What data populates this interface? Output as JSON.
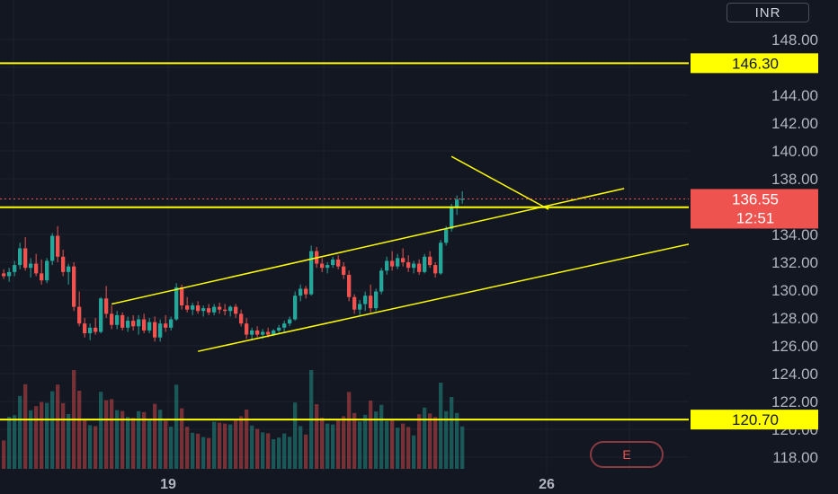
{
  "currency": "INR",
  "events_label": "E",
  "countdown": "12:51",
  "colors": {
    "background": "#131722",
    "grid": "#1e222d",
    "up": "#26a69a",
    "down": "#ef5350",
    "drawing": "#ffff00",
    "axis_text": "#b2b5be",
    "last_price_bg": "#ef5350"
  },
  "chart_data": {
    "type": "candlestick",
    "y_axis": {
      "ylim": [
        117,
        151
      ],
      "tick_labels": [
        "118.00",
        "120.00",
        "122.00",
        "124.00",
        "126.00",
        "128.00",
        "130.00",
        "132.00",
        "134.00",
        "136.00",
        "138.00",
        "140.00",
        "142.00",
        "144.00",
        "146.00",
        "148.00"
      ]
    },
    "x_axis": {
      "tick_labels": [
        "19",
        "26"
      ]
    },
    "last_price": 136.55,
    "horizontal_levels": [
      {
        "price": 146.3,
        "label": "146.30"
      },
      {
        "price": 135.95,
        "label": ""
      },
      {
        "price": 120.7,
        "label": "120.70"
      }
    ],
    "last_price_label": "136.55",
    "trendlines": [
      {
        "name": "channel-upper",
        "from": {
          "bar": 20,
          "price": 129.0
        },
        "to": {
          "bar": 115,
          "price": 137.3
        }
      },
      {
        "name": "channel-lower",
        "from": {
          "bar": 36,
          "price": 125.6
        },
        "to": {
          "bar": 140,
          "price": 133.3
        }
      },
      {
        "name": "breakout-line",
        "from": {
          "bar": 83,
          "price": 139.6
        },
        "to": {
          "bar": 101,
          "price": 135.8
        }
      }
    ],
    "candles_source": "approximate intraday bars estimated from image",
    "series": [
      {
        "name": "price",
        "values": [
          [
            131.2,
            131.5,
            130.8,
            131.0
          ],
          [
            131.0,
            131.6,
            130.6,
            131.3
          ],
          [
            131.3,
            132.1,
            131.0,
            131.8
          ],
          [
            131.8,
            133.4,
            131.5,
            133.0
          ],
          [
            133.0,
            133.8,
            131.4,
            131.6
          ],
          [
            131.6,
            132.3,
            130.9,
            131.9
          ],
          [
            131.9,
            132.6,
            131.0,
            131.2
          ],
          [
            131.2,
            132.2,
            130.4,
            130.7
          ],
          [
            130.7,
            132.3,
            130.5,
            132.1
          ],
          [
            132.1,
            134.1,
            131.8,
            133.9
          ],
          [
            133.9,
            134.6,
            132.0,
            132.4
          ],
          [
            132.4,
            132.9,
            131.0,
            131.3
          ],
          [
            131.3,
            131.9,
            130.4,
            131.7
          ],
          [
            131.7,
            132.0,
            128.5,
            128.8
          ],
          [
            128.8,
            129.9,
            127.4,
            127.6
          ],
          [
            127.6,
            128.0,
            126.6,
            126.9
          ],
          [
            126.9,
            127.6,
            126.4,
            127.3
          ],
          [
            127.3,
            128.0,
            126.8,
            127.0
          ],
          [
            127.0,
            129.5,
            126.9,
            129.4
          ],
          [
            129.4,
            130.3,
            128.0,
            128.3
          ],
          [
            128.3,
            128.9,
            127.2,
            127.5
          ],
          [
            127.5,
            128.5,
            127.2,
            128.2
          ],
          [
            128.2,
            128.4,
            127.1,
            127.3
          ],
          [
            127.3,
            128.1,
            127.0,
            127.8
          ],
          [
            127.8,
            128.2,
            127.1,
            127.4
          ],
          [
            127.4,
            128.2,
            126.8,
            127.9
          ],
          [
            127.9,
            128.3,
            126.9,
            127.1
          ],
          [
            127.1,
            128.0,
            126.9,
            127.7
          ],
          [
            127.7,
            128.1,
            126.3,
            126.6
          ],
          [
            126.6,
            127.9,
            126.3,
            127.6
          ],
          [
            127.6,
            128.2,
            127.0,
            127.3
          ],
          [
            127.3,
            128.1,
            127.1,
            127.9
          ],
          [
            127.9,
            130.5,
            127.8,
            130.2
          ],
          [
            130.2,
            130.4,
            128.6,
            128.9
          ],
          [
            128.9,
            129.5,
            128.4,
            128.6
          ],
          [
            128.6,
            129.1,
            128.2,
            128.9
          ],
          [
            128.9,
            129.2,
            128.3,
            128.5
          ],
          [
            128.5,
            128.9,
            128.1,
            128.7
          ],
          [
            128.7,
            129.0,
            128.2,
            128.4
          ],
          [
            128.4,
            129.0,
            128.2,
            128.8
          ],
          [
            128.8,
            129.1,
            128.3,
            128.6
          ],
          [
            128.6,
            129.0,
            128.2,
            128.5
          ],
          [
            128.5,
            128.9,
            128.1,
            128.8
          ],
          [
            128.8,
            129.0,
            128.0,
            128.3
          ],
          [
            128.3,
            128.6,
            127.4,
            127.6
          ],
          [
            127.6,
            128.0,
            126.5,
            126.8
          ],
          [
            126.8,
            127.3,
            126.4,
            127.1
          ],
          [
            127.1,
            127.4,
            126.6,
            126.8
          ],
          [
            126.8,
            127.2,
            126.5,
            127.0
          ],
          [
            127.0,
            127.3,
            126.6,
            126.8
          ],
          [
            126.8,
            127.2,
            126.7,
            127.1
          ],
          [
            127.1,
            127.5,
            126.9,
            127.3
          ],
          [
            127.3,
            127.8,
            127.0,
            127.6
          ],
          [
            127.6,
            128.1,
            127.4,
            127.9
          ],
          [
            127.9,
            129.9,
            127.8,
            129.6
          ],
          [
            129.6,
            130.4,
            129.2,
            130.1
          ],
          [
            130.1,
            130.3,
            129.4,
            129.7
          ],
          [
            129.7,
            133.2,
            129.6,
            132.8
          ],
          [
            132.8,
            133.1,
            131.6,
            131.9
          ],
          [
            131.9,
            132.3,
            131.3,
            131.6
          ],
          [
            131.6,
            132.0,
            131.2,
            131.8
          ],
          [
            131.8,
            132.4,
            131.6,
            132.2
          ],
          [
            132.2,
            132.5,
            131.5,
            131.7
          ],
          [
            131.7,
            132.0,
            130.8,
            131.1
          ],
          [
            131.1,
            131.4,
            129.2,
            129.5
          ],
          [
            129.5,
            129.7,
            128.3,
            128.6
          ],
          [
            128.6,
            129.3,
            128.2,
            129.0
          ],
          [
            129.0,
            129.9,
            128.5,
            129.6
          ],
          [
            129.6,
            130.4,
            128.4,
            128.7
          ],
          [
            128.7,
            130.1,
            128.5,
            129.9
          ],
          [
            129.9,
            131.6,
            129.7,
            131.4
          ],
          [
            131.4,
            132.4,
            131.1,
            132.1
          ],
          [
            132.1,
            132.8,
            131.4,
            131.7
          ],
          [
            131.7,
            132.6,
            131.5,
            132.3
          ],
          [
            132.3,
            133.0,
            131.7,
            132.0
          ],
          [
            132.0,
            132.5,
            131.3,
            131.6
          ],
          [
            131.6,
            132.1,
            131.2,
            131.9
          ],
          [
            131.9,
            132.2,
            131.1,
            131.3
          ],
          [
            131.3,
            132.6,
            131.2,
            132.4
          ],
          [
            132.4,
            132.8,
            131.6,
            131.8
          ],
          [
            131.8,
            132.0,
            130.9,
            131.2
          ],
          [
            131.2,
            133.6,
            131.1,
            133.4
          ],
          [
            133.4,
            134.6,
            133.2,
            134.4
          ],
          [
            134.4,
            136.2,
            134.2,
            135.9
          ],
          [
            135.9,
            136.8,
            135.4,
            136.5
          ],
          [
            136.5,
            137.1,
            136.2,
            136.55
          ]
        ]
      }
    ]
  }
}
